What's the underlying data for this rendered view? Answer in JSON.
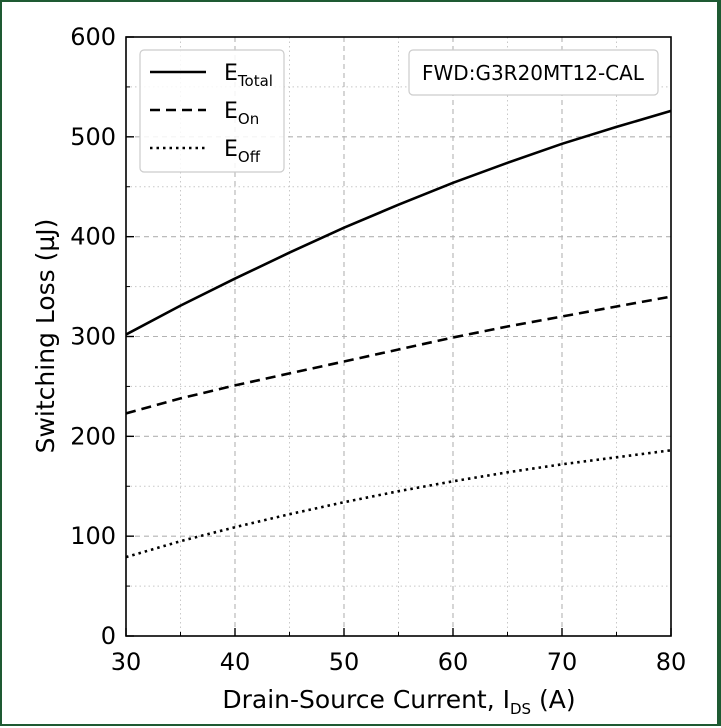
{
  "chart_data": {
    "type": "line",
    "title": "",
    "xlabel_main": "Drain-Source Current, I",
    "xlabel_sub": "DS",
    "xlabel_suffix": " (A)",
    "ylabel": "Switching Loss (µJ)",
    "xlim": [
      30,
      80
    ],
    "ylim": [
      0,
      600
    ],
    "xticks": [
      30,
      40,
      50,
      60,
      70,
      80
    ],
    "yticks": [
      0,
      100,
      200,
      300,
      400,
      500,
      600
    ],
    "grid": true,
    "legend_position": "top-left",
    "annotation": "FWD:G3R20MT12-CAL",
    "series": [
      {
        "name_main": "E",
        "name_sub": "Total",
        "style": "solid",
        "x": [
          30,
          35,
          40,
          45,
          50,
          55,
          60,
          65,
          70,
          75,
          80
        ],
        "y": [
          302,
          331,
          358,
          384,
          409,
          432,
          454,
          474,
          493,
          510,
          526
        ]
      },
      {
        "name_main": "E",
        "name_sub": "On",
        "style": "dashed",
        "x": [
          30,
          35,
          40,
          45,
          50,
          55,
          60,
          65,
          70,
          75,
          80
        ],
        "y": [
          223,
          238,
          251,
          263,
          275,
          287,
          299,
          310,
          320,
          330,
          340
        ]
      },
      {
        "name_main": "E",
        "name_sub": "Off",
        "style": "dotted",
        "x": [
          30,
          35,
          40,
          45,
          50,
          55,
          60,
          65,
          70,
          75,
          80
        ],
        "y": [
          79,
          95,
          109,
          122,
          134,
          145,
          155,
          164,
          172,
          179,
          186
        ]
      }
    ]
  }
}
